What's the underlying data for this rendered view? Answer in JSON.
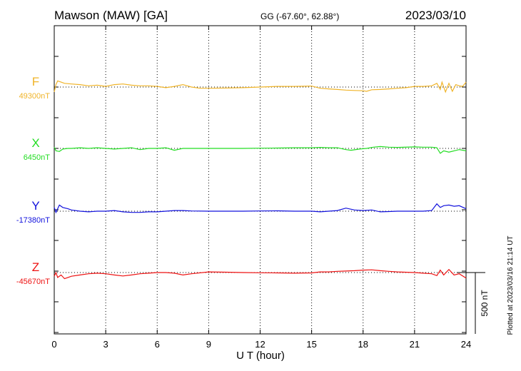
{
  "header": {
    "station": "Mawson (MAW)  [GA]",
    "coords": "GG (-67.60°,  62.88°)",
    "date": "2023/03/10"
  },
  "plotted_note": "Plotted at 2023/03/16 21:14 UT",
  "chart_data": {
    "type": "line",
    "xlabel": "U T (hour)",
    "xlim": [
      0,
      24
    ],
    "xticks": [
      "0",
      "3",
      "6",
      "9",
      "12",
      "15",
      "18",
      "21",
      "24"
    ],
    "scale_bar": {
      "label": "500 nT",
      "value_nT": 500
    },
    "grid": true,
    "series": [
      {
        "name": "F",
        "baseline_label": "49300nT",
        "color": "#f0b429",
        "x": [
          0,
          0.1,
          0.2,
          0.4,
          0.6,
          1,
          1.5,
          2,
          2.5,
          3,
          3.5,
          4,
          4.5,
          5,
          5.5,
          6,
          6.5,
          7,
          7.5,
          8,
          8.5,
          9,
          10,
          11,
          12,
          13,
          14,
          15,
          15.5,
          16,
          16.5,
          17,
          17.5,
          18,
          18.2,
          18.5,
          19,
          19.5,
          20,
          20.5,
          21,
          21.5,
          22,
          22.3,
          22.5,
          22.6,
          22.8,
          23,
          23.2,
          23.4,
          23.6,
          23.8,
          24
        ],
        "values": [
          -40,
          20,
          50,
          40,
          30,
          25,
          20,
          10,
          15,
          5,
          20,
          25,
          15,
          10,
          10,
          5,
          -5,
          5,
          20,
          0,
          -10,
          -10,
          -8,
          -5,
          0,
          5,
          5,
          8,
          -10,
          -15,
          -20,
          -25,
          -28,
          -30,
          -35,
          -22,
          -20,
          -15,
          -10,
          -5,
          5,
          5,
          10,
          30,
          -20,
          40,
          -40,
          30,
          -35,
          20,
          10,
          5,
          40
        ]
      },
      {
        "name": "X",
        "baseline_label": "6450nT",
        "color": "#22dd22",
        "x": [
          0,
          0.1,
          0.3,
          0.5,
          0.8,
          1,
          1.5,
          2,
          2.5,
          3,
          3.5,
          4,
          4.5,
          5,
          5.5,
          6,
          6.5,
          7,
          7.5,
          8,
          9,
          10,
          11,
          12,
          13,
          14,
          15,
          15.5,
          16,
          16.5,
          17,
          17.3,
          17.8,
          18.2,
          18.6,
          19,
          19.5,
          20,
          21,
          21.5,
          22,
          22.3,
          22.5,
          22.7,
          23,
          23.3,
          23.6,
          24
        ],
        "values": [
          10,
          -20,
          -25,
          -5,
          0,
          0,
          5,
          0,
          5,
          0,
          -5,
          0,
          5,
          -10,
          0,
          0,
          5,
          -15,
          0,
          0,
          0,
          0,
          0,
          2,
          3,
          5,
          5,
          8,
          5,
          5,
          -10,
          -15,
          -5,
          0,
          10,
          15,
          10,
          8,
          12,
          10,
          10,
          5,
          -40,
          -20,
          -30,
          -20,
          -10,
          -20
        ]
      },
      {
        "name": "Y",
        "baseline_label": "-17380nT",
        "color": "#1111dd",
        "x": [
          0,
          0.1,
          0.2,
          0.3,
          0.5,
          0.8,
          1,
          1.5,
          2,
          2.5,
          3,
          3.5,
          4,
          4.5,
          5,
          5.5,
          6,
          6.5,
          7,
          7.5,
          8,
          9,
          10,
          11,
          12,
          13,
          14,
          15,
          15.5,
          16,
          16.5,
          17,
          17.5,
          18,
          18.5,
          19,
          19.5,
          20,
          21,
          21.5,
          22,
          22.3,
          22.5,
          22.7,
          23,
          23.3,
          23.6,
          24
        ],
        "values": [
          30,
          -10,
          20,
          50,
          30,
          20,
          10,
          0,
          -5,
          0,
          0,
          5,
          -5,
          -10,
          -10,
          -5,
          -5,
          0,
          5,
          5,
          2,
          0,
          0,
          0,
          2,
          3,
          0,
          0,
          -5,
          0,
          5,
          25,
          10,
          5,
          10,
          -5,
          -3,
          0,
          0,
          0,
          5,
          60,
          30,
          45,
          50,
          40,
          45,
          20
        ]
      },
      {
        "name": "Z",
        "baseline_label": "-45670nT",
        "color": "#ee1111",
        "x": [
          0,
          0.1,
          0.2,
          0.4,
          0.6,
          0.8,
          1,
          1.5,
          2,
          2.5,
          3,
          3.5,
          4,
          4.5,
          5,
          5.5,
          6,
          6.5,
          7,
          7.5,
          8,
          9,
          10,
          11,
          12,
          13,
          14,
          15,
          15.5,
          16,
          16.5,
          17,
          17.5,
          18,
          18.5,
          19,
          19.5,
          20,
          21,
          21.5,
          22,
          22.3,
          22.5,
          22.7,
          23,
          23.3,
          23.6,
          24
        ],
        "values": [
          -30,
          0,
          -40,
          -20,
          -50,
          -40,
          -30,
          -20,
          -10,
          -5,
          -10,
          -20,
          -28,
          -20,
          -10,
          -5,
          0,
          0,
          -5,
          -20,
          -10,
          5,
          3,
          0,
          -2,
          -3,
          -5,
          -3,
          5,
          5,
          10,
          12,
          15,
          20,
          22,
          15,
          10,
          5,
          0,
          -5,
          -10,
          -25,
          20,
          -20,
          25,
          -20,
          -10,
          -45
        ]
      }
    ]
  }
}
